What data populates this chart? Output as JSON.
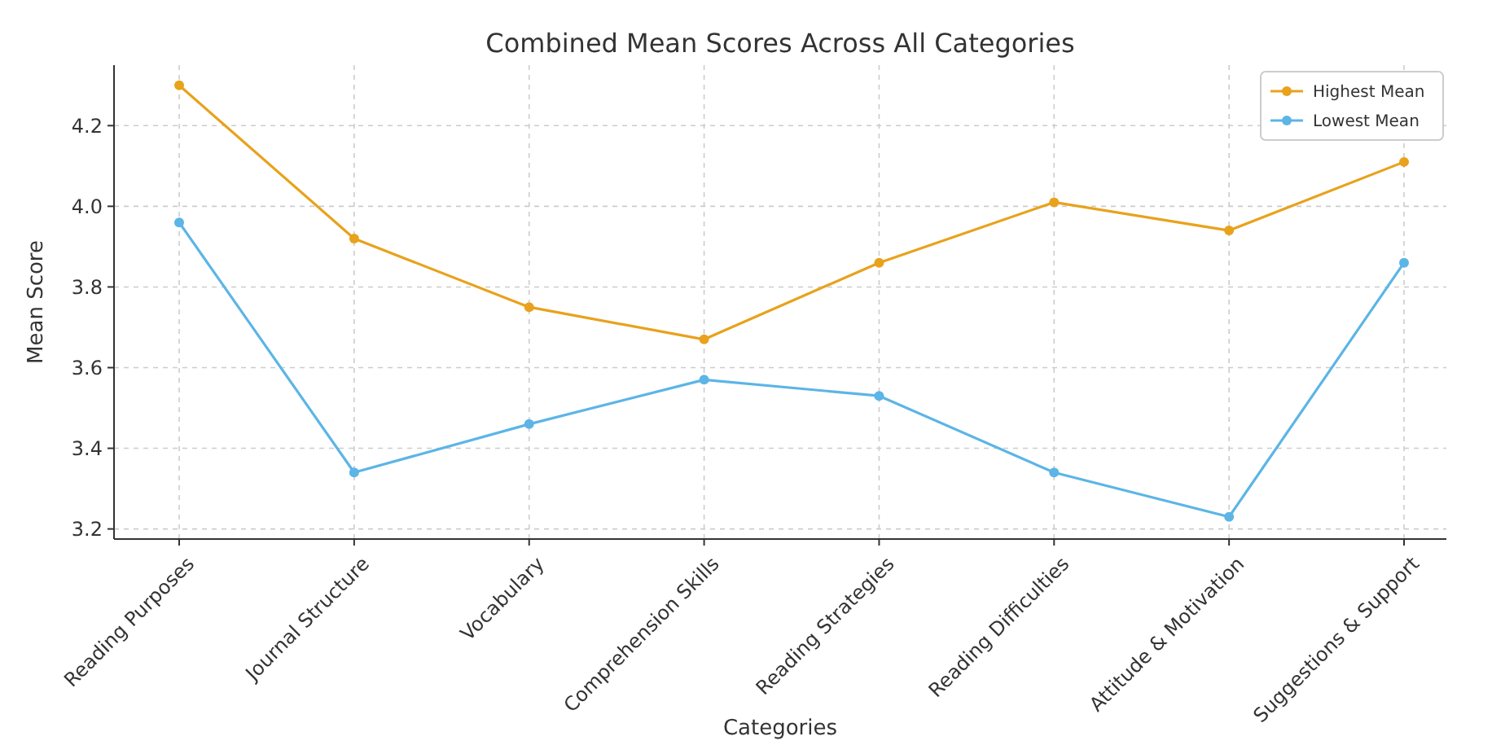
{
  "chart_data": {
    "type": "line",
    "title": "Combined Mean Scores Across All Categories",
    "xlabel": "Categories",
    "ylabel": "Mean Score",
    "categories": [
      "Reading Purposes",
      "Journal Structure",
      "Vocabulary",
      "Comprehension Skills",
      "Reading Strategies",
      "Reading Difficulties",
      "Attitude & Motivation",
      "Suggestions & Support"
    ],
    "series": [
      {
        "name": "Highest Mean",
        "color": "#e8a21c",
        "values": [
          4.3,
          3.92,
          3.75,
          3.67,
          3.86,
          4.01,
          3.94,
          4.11
        ]
      },
      {
        "name": "Lowest Mean",
        "color": "#5cb5e6",
        "values": [
          3.96,
          3.34,
          3.46,
          3.57,
          3.53,
          3.34,
          3.23,
          3.86
        ]
      }
    ],
    "ylim": [
      3.175,
      4.35
    ],
    "yticks": [
      {
        "value": 3.2,
        "label": "3.2"
      },
      {
        "value": 3.4,
        "label": "3.4"
      },
      {
        "value": 3.6,
        "label": "3.6"
      },
      {
        "value": 3.8,
        "label": "3.8"
      },
      {
        "value": 4.0,
        "label": "4.0"
      },
      {
        "value": 4.2,
        "label": "4.2"
      }
    ],
    "grid": true,
    "legend": "top right",
    "marker": "circle",
    "line_style": "solid"
  }
}
